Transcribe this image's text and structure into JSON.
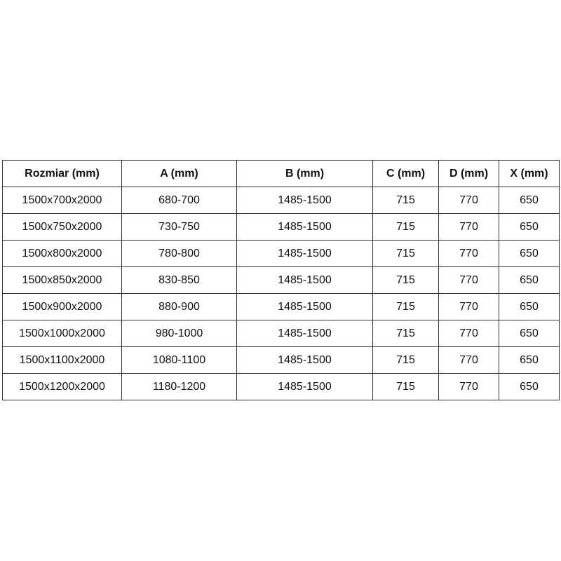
{
  "table": {
    "headers": [
      "Rozmiar (mm)",
      "A (mm)",
      "B (mm)",
      "C (mm)",
      "D (mm)",
      "X (mm)"
    ],
    "rows": [
      [
        "1500x700x2000",
        "680-700",
        "1485-1500",
        "715",
        "770",
        "650"
      ],
      [
        "1500x750x2000",
        "730-750",
        "1485-1500",
        "715",
        "770",
        "650"
      ],
      [
        "1500x800x2000",
        "780-800",
        "1485-1500",
        "715",
        "770",
        "650"
      ],
      [
        "1500x850x2000",
        "830-850",
        "1485-1500",
        "715",
        "770",
        "650"
      ],
      [
        "1500x900x2000",
        "880-900",
        "1485-1500",
        "715",
        "770",
        "650"
      ],
      [
        "1500x1000x2000",
        "980-1000",
        "1485-1500",
        "715",
        "770",
        "650"
      ],
      [
        "1500x1100x2000",
        "1080-1100",
        "1485-1500",
        "715",
        "770",
        "650"
      ],
      [
        "1500x1200x2000",
        "1180-1200",
        "1485-1500",
        "715",
        "770",
        "650"
      ]
    ]
  }
}
